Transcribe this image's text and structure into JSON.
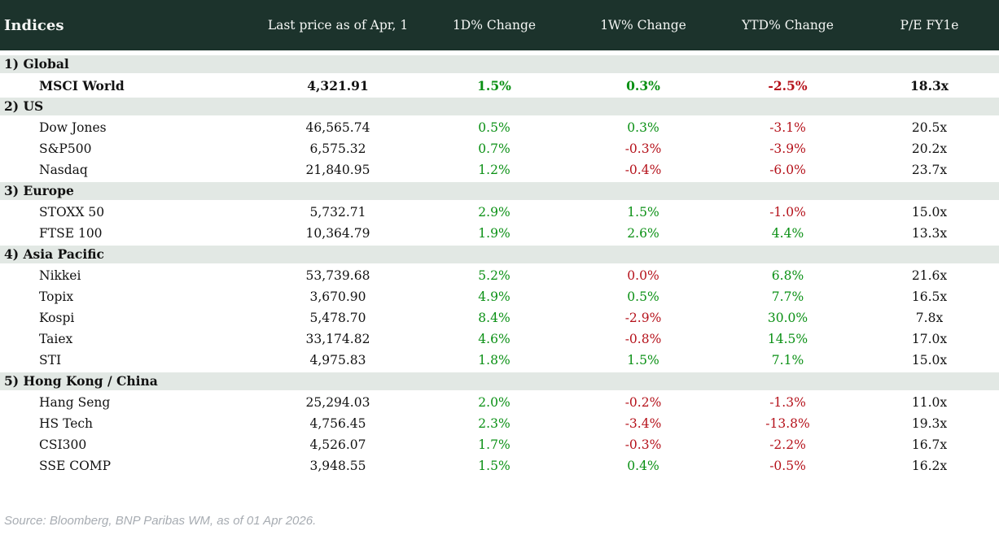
{
  "colors": {
    "header_bg": "#1c332c",
    "band_bg": "#e2e8e4",
    "positive": "#0a9014",
    "negative": "#b5121b",
    "footer_text": "#a7acb2"
  },
  "header": {
    "title": "Indices",
    "columns": [
      "Last price as of Apr, 1",
      "1D% Change",
      "1W% Change",
      "YTD% Change",
      "P/E FY1e"
    ]
  },
  "sections": [
    {
      "label": "1) Global",
      "rows": [
        {
          "name": "MSCI World",
          "bold": true,
          "price": "4,321.91",
          "d1": {
            "v": "1.5%",
            "s": "pos"
          },
          "w1": {
            "v": "0.3%",
            "s": "pos"
          },
          "ytd": {
            "v": "-2.5%",
            "s": "neg"
          },
          "pe": "18.3x"
        }
      ]
    },
    {
      "label": "2) US",
      "rows": [
        {
          "name": "Dow Jones",
          "bold": false,
          "price": "46,565.74",
          "d1": {
            "v": "0.5%",
            "s": "pos"
          },
          "w1": {
            "v": "0.3%",
            "s": "pos"
          },
          "ytd": {
            "v": "-3.1%",
            "s": "neg"
          },
          "pe": "20.5x"
        },
        {
          "name": "S&P500",
          "bold": false,
          "price": "6,575.32",
          "d1": {
            "v": "0.7%",
            "s": "pos"
          },
          "w1": {
            "v": "-0.3%",
            "s": "neg"
          },
          "ytd": {
            "v": "-3.9%",
            "s": "neg"
          },
          "pe": "20.2x"
        },
        {
          "name": "Nasdaq",
          "bold": false,
          "price": "21,840.95",
          "d1": {
            "v": "1.2%",
            "s": "pos"
          },
          "w1": {
            "v": "-0.4%",
            "s": "neg"
          },
          "ytd": {
            "v": "-6.0%",
            "s": "neg"
          },
          "pe": "23.7x"
        }
      ]
    },
    {
      "label": "3) Europe",
      "rows": [
        {
          "name": "STOXX 50",
          "bold": false,
          "price": "5,732.71",
          "d1": {
            "v": "2.9%",
            "s": "pos"
          },
          "w1": {
            "v": "1.5%",
            "s": "pos"
          },
          "ytd": {
            "v": "-1.0%",
            "s": "neg"
          },
          "pe": "15.0x"
        },
        {
          "name": "FTSE 100",
          "bold": false,
          "price": "10,364.79",
          "d1": {
            "v": "1.9%",
            "s": "pos"
          },
          "w1": {
            "v": "2.6%",
            "s": "pos"
          },
          "ytd": {
            "v": "4.4%",
            "s": "pos"
          },
          "pe": "13.3x"
        }
      ]
    },
    {
      "label": "4) Asia Pacific",
      "rows": [
        {
          "name": "Nikkei",
          "bold": false,
          "price": "53,739.68",
          "d1": {
            "v": "5.2%",
            "s": "pos"
          },
          "w1": {
            "v": "0.0%",
            "s": "neg"
          },
          "ytd": {
            "v": "6.8%",
            "s": "pos"
          },
          "pe": "21.6x"
        },
        {
          "name": "Topix",
          "bold": false,
          "price": "3,670.90",
          "d1": {
            "v": "4.9%",
            "s": "pos"
          },
          "w1": {
            "v": "0.5%",
            "s": "pos"
          },
          "ytd": {
            "v": "7.7%",
            "s": "pos"
          },
          "pe": "16.5x"
        },
        {
          "name": "Kospi",
          "bold": false,
          "price": "5,478.70",
          "d1": {
            "v": "8.4%",
            "s": "pos"
          },
          "w1": {
            "v": "-2.9%",
            "s": "neg"
          },
          "ytd": {
            "v": "30.0%",
            "s": "pos"
          },
          "pe": "7.8x"
        },
        {
          "name": "Taiex",
          "bold": false,
          "price": "33,174.82",
          "d1": {
            "v": "4.6%",
            "s": "pos"
          },
          "w1": {
            "v": "-0.8%",
            "s": "neg"
          },
          "ytd": {
            "v": "14.5%",
            "s": "pos"
          },
          "pe": "17.0x"
        },
        {
          "name": "STI",
          "bold": false,
          "price": "4,975.83",
          "d1": {
            "v": "1.8%",
            "s": "pos"
          },
          "w1": {
            "v": "1.5%",
            "s": "pos"
          },
          "ytd": {
            "v": "7.1%",
            "s": "pos"
          },
          "pe": "15.0x"
        }
      ]
    },
    {
      "label": "5) Hong Kong / China",
      "rows": [
        {
          "name": "Hang Seng",
          "bold": false,
          "price": "25,294.03",
          "d1": {
            "v": "2.0%",
            "s": "pos"
          },
          "w1": {
            "v": "-0.2%",
            "s": "neg"
          },
          "ytd": {
            "v": "-1.3%",
            "s": "neg"
          },
          "pe": "11.0x"
        },
        {
          "name": "HS Tech",
          "bold": false,
          "price": "4,756.45",
          "d1": {
            "v": "2.3%",
            "s": "pos"
          },
          "w1": {
            "v": "-3.4%",
            "s": "neg"
          },
          "ytd": {
            "v": "-13.8%",
            "s": "neg"
          },
          "pe": "19.3x"
        },
        {
          "name": "CSI300",
          "bold": false,
          "price": "4,526.07",
          "d1": {
            "v": "1.7%",
            "s": "pos"
          },
          "w1": {
            "v": "-0.3%",
            "s": "neg"
          },
          "ytd": {
            "v": "-2.2%",
            "s": "neg"
          },
          "pe": "16.7x"
        },
        {
          "name": "SSE COMP",
          "bold": false,
          "price": "3,948.55",
          "d1": {
            "v": "1.5%",
            "s": "pos"
          },
          "w1": {
            "v": "0.4%",
            "s": "pos"
          },
          "ytd": {
            "v": "-0.5%",
            "s": "neg"
          },
          "pe": "16.2x"
        }
      ]
    }
  ],
  "footer": {
    "source": "Source: Bloomberg, BNP Paribas WM, as of 01 Apr 2026."
  }
}
